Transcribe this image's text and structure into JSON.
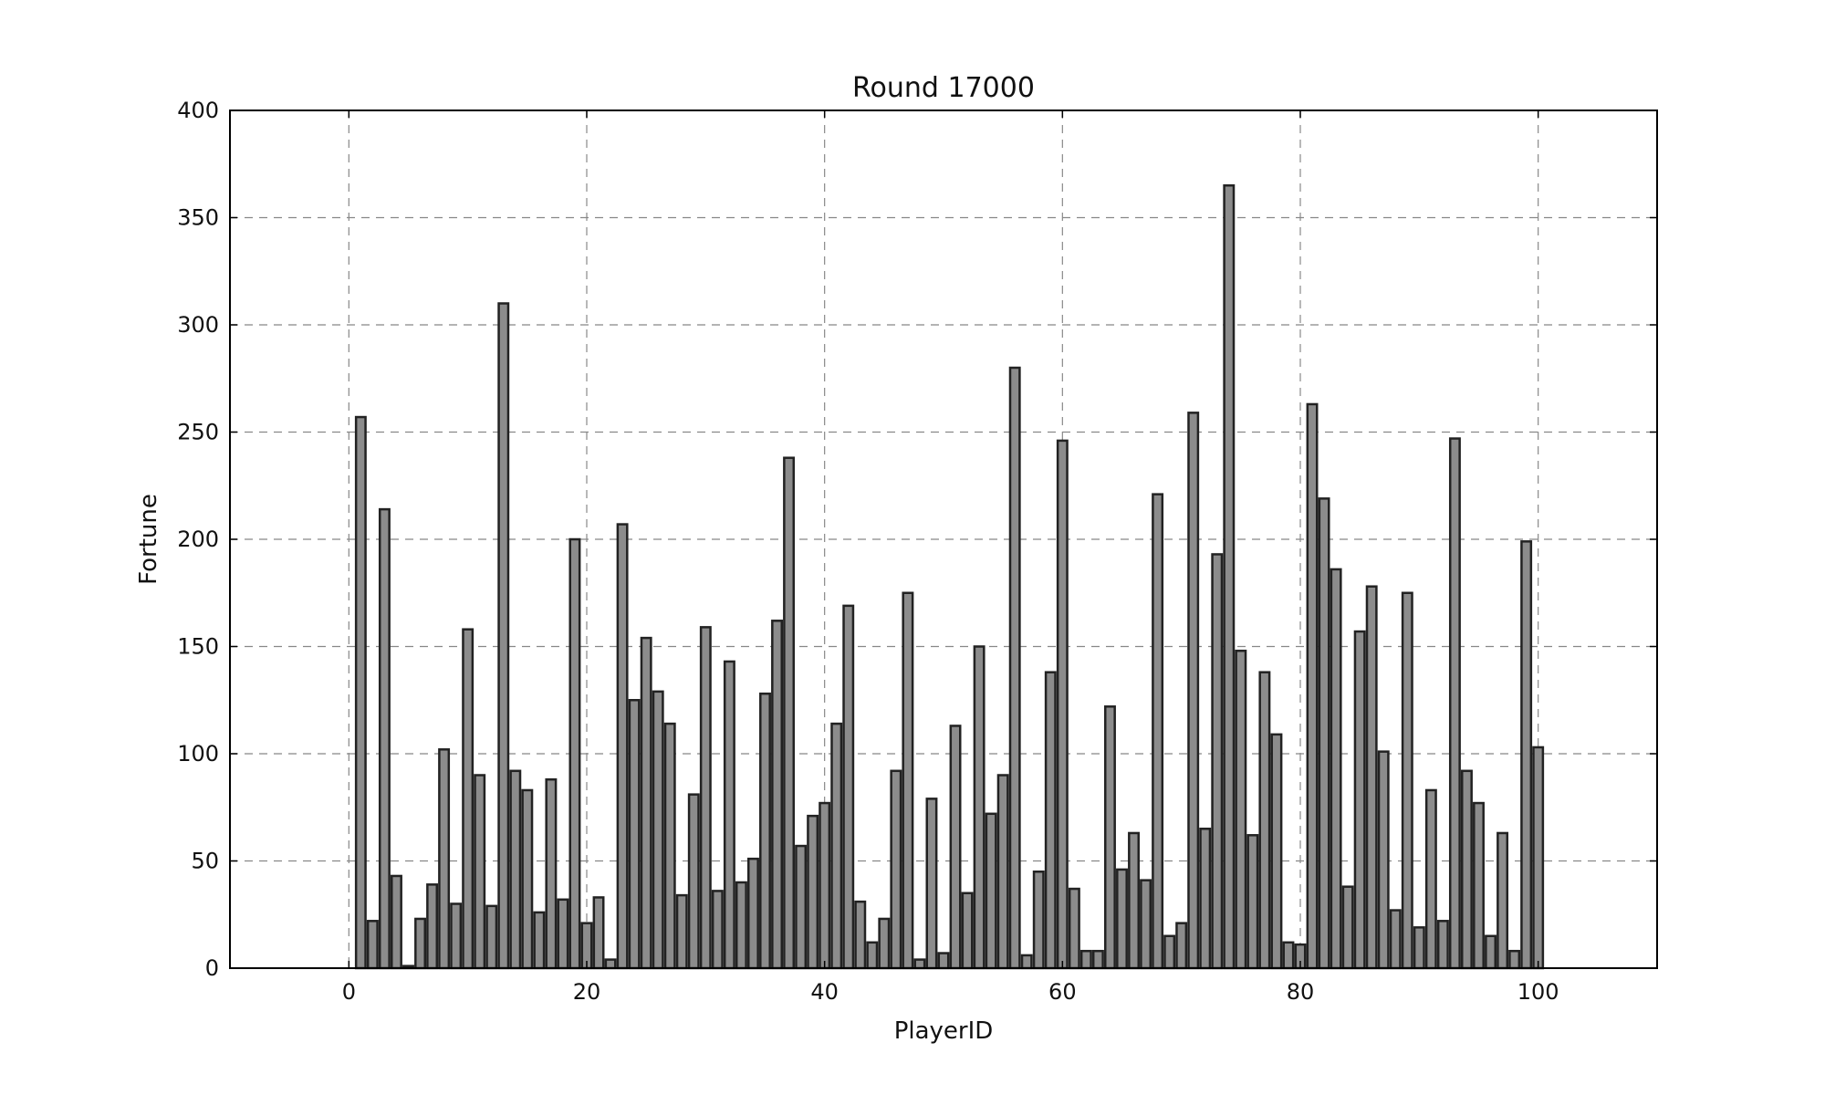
{
  "chart_data": {
    "type": "bar",
    "title": "Round 17000",
    "xlabel": "PlayerID",
    "ylabel": "Fortune",
    "xlim": [
      -10,
      110
    ],
    "ylim": [
      0,
      400
    ],
    "xticks": [
      "0",
      "20",
      "40",
      "60",
      "80",
      "100"
    ],
    "yticks": [
      "0",
      "50",
      "100",
      "150",
      "200",
      "250",
      "300",
      "350",
      "400"
    ],
    "grid": true,
    "legend": "none",
    "bar_color": "#8c8c8c",
    "edge_color": "#222222",
    "x": [
      1,
      2,
      3,
      4,
      5,
      6,
      7,
      8,
      9,
      10,
      11,
      12,
      13,
      14,
      15,
      16,
      17,
      18,
      19,
      20,
      21,
      22,
      23,
      24,
      25,
      26,
      27,
      28,
      29,
      30,
      31,
      32,
      33,
      34,
      35,
      36,
      37,
      38,
      39,
      40,
      41,
      42,
      43,
      44,
      45,
      46,
      47,
      48,
      49,
      50,
      51,
      52,
      53,
      54,
      55,
      56,
      57,
      58,
      59,
      60,
      61,
      62,
      63,
      64,
      65,
      66,
      67,
      68,
      69,
      70,
      71,
      72,
      73,
      74,
      75,
      76,
      77,
      78,
      79,
      80,
      81,
      82,
      83,
      84,
      85,
      86,
      87,
      88,
      89,
      90,
      91,
      92,
      93,
      94,
      95,
      96,
      97,
      98,
      99,
      100
    ],
    "values": [
      257,
      22,
      214,
      43,
      1,
      23,
      39,
      102,
      30,
      158,
      90,
      29,
      310,
      92,
      83,
      26,
      88,
      32,
      200,
      21,
      33,
      4,
      207,
      125,
      154,
      129,
      114,
      34,
      81,
      159,
      36,
      143,
      40,
      51,
      128,
      162,
      238,
      57,
      71,
      77,
      114,
      169,
      31,
      12,
      23,
      92,
      175,
      4,
      79,
      7,
      113,
      35,
      150,
      72,
      90,
      280,
      6,
      45,
      138,
      246,
      37,
      8,
      8,
      122,
      46,
      63,
      41,
      221,
      15,
      21,
      259,
      65,
      193,
      365,
      148,
      62,
      138,
      109,
      12,
      11,
      263,
      219,
      186,
      38,
      157,
      178,
      101,
      27,
      175,
      19,
      83,
      22,
      247,
      92,
      77,
      15,
      63,
      8,
      199,
      103
    ]
  }
}
